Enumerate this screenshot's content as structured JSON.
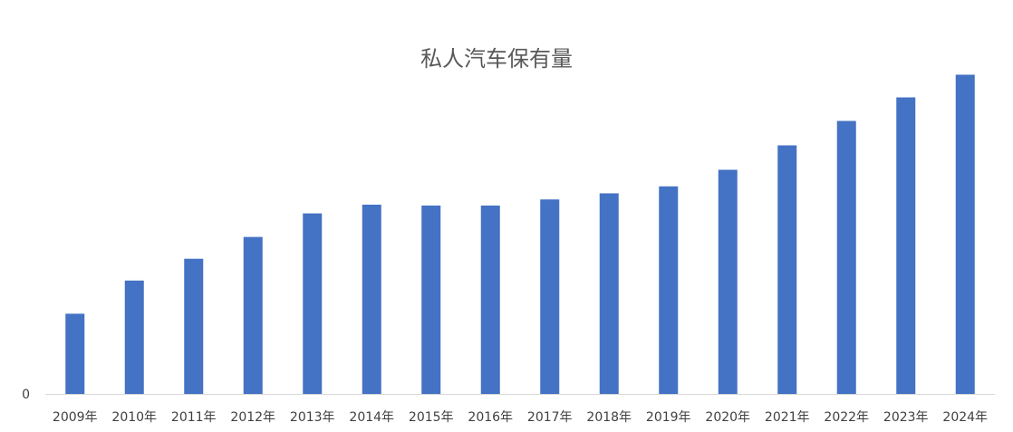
{
  "chart_data": {
    "type": "bar",
    "title": "私人汽车保有量",
    "xlabel": "",
    "ylabel": "",
    "categories": [
      "2009年",
      "2010年",
      "2011年",
      "2012年",
      "2013年",
      "2014年",
      "2015年",
      "2016年",
      "2017年",
      "2018年",
      "2019年",
      "2020年",
      "2021年",
      "2022年",
      "2023年",
      "2024年"
    ],
    "series": [
      {
        "values": [
          92,
          130,
          155,
          180,
          207,
          217,
          216,
          216,
          223,
          230,
          238,
          257,
          285,
          313,
          340,
          366
        ]
      }
    ],
    "ylim": [
      0,
      380
    ],
    "y_ticks": [
      "0"
    ],
    "grid": false,
    "legend": "none",
    "bar_color": "#4472C4",
    "axis_color": "#D9D9D9"
  }
}
